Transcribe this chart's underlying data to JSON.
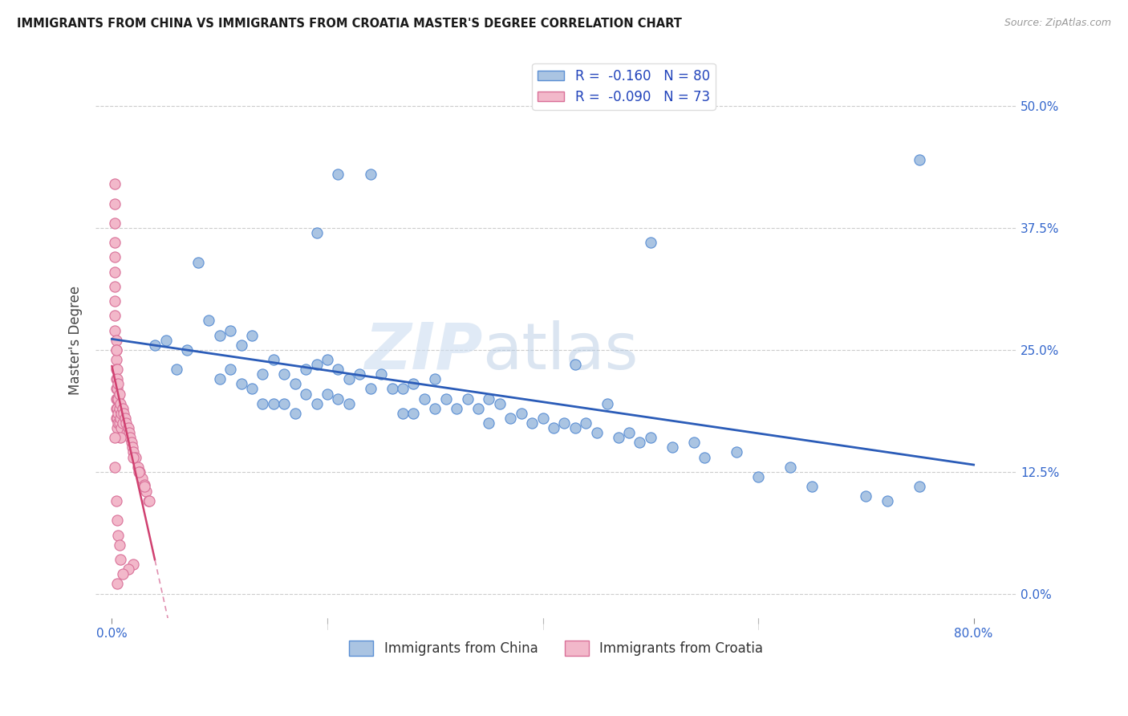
{
  "title": "IMMIGRANTS FROM CHINA VS IMMIGRANTS FROM CROATIA MASTER'S DEGREE CORRELATION CHART",
  "source": "Source: ZipAtlas.com",
  "xlabel_ticks": [
    "0.0%",
    "",
    "",
    "",
    "80.0%"
  ],
  "xlabel_tick_vals": [
    0.0,
    0.2,
    0.4,
    0.6,
    0.8
  ],
  "ylabel_ticks": [
    "0.0%",
    "12.5%",
    "25.0%",
    "37.5%",
    "50.0%"
  ],
  "ylabel_tick_vals": [
    0.0,
    0.125,
    0.25,
    0.375,
    0.5
  ],
  "ylabel": "Master's Degree",
  "xlim": [
    -0.015,
    0.84
  ],
  "ylim": [
    -0.025,
    0.545
  ],
  "china_color": "#aac4e2",
  "china_edge_color": "#5b8fd4",
  "croatia_color": "#f2b8ca",
  "croatia_edge_color": "#d97098",
  "trend_china_color": "#2b5cb8",
  "trend_croatia_solid_color": "#d04070",
  "trend_croatia_dash_color": "#e090b0",
  "R_china": -0.16,
  "N_china": 80,
  "R_croatia": -0.09,
  "N_croatia": 73,
  "china_x": [
    0.04,
    0.05,
    0.06,
    0.07,
    0.08,
    0.09,
    0.1,
    0.1,
    0.11,
    0.11,
    0.12,
    0.12,
    0.13,
    0.13,
    0.14,
    0.14,
    0.15,
    0.15,
    0.16,
    0.16,
    0.17,
    0.17,
    0.18,
    0.18,
    0.19,
    0.19,
    0.2,
    0.2,
    0.21,
    0.21,
    0.22,
    0.22,
    0.23,
    0.24,
    0.25,
    0.26,
    0.27,
    0.27,
    0.28,
    0.28,
    0.29,
    0.3,
    0.3,
    0.31,
    0.32,
    0.33,
    0.34,
    0.35,
    0.35,
    0.36,
    0.37,
    0.38,
    0.39,
    0.4,
    0.41,
    0.42,
    0.43,
    0.44,
    0.45,
    0.46,
    0.47,
    0.48,
    0.49,
    0.5,
    0.52,
    0.54,
    0.55,
    0.58,
    0.6,
    0.63,
    0.65,
    0.7,
    0.72,
    0.75,
    0.21,
    0.24,
    0.19,
    0.43,
    0.5,
    0.75
  ],
  "china_y": [
    0.255,
    0.26,
    0.23,
    0.25,
    0.34,
    0.28,
    0.265,
    0.22,
    0.27,
    0.23,
    0.255,
    0.215,
    0.265,
    0.21,
    0.225,
    0.195,
    0.24,
    0.195,
    0.225,
    0.195,
    0.215,
    0.185,
    0.23,
    0.205,
    0.235,
    0.195,
    0.24,
    0.205,
    0.23,
    0.2,
    0.22,
    0.195,
    0.225,
    0.21,
    0.225,
    0.21,
    0.21,
    0.185,
    0.215,
    0.185,
    0.2,
    0.22,
    0.19,
    0.2,
    0.19,
    0.2,
    0.19,
    0.2,
    0.175,
    0.195,
    0.18,
    0.185,
    0.175,
    0.18,
    0.17,
    0.175,
    0.17,
    0.175,
    0.165,
    0.195,
    0.16,
    0.165,
    0.155,
    0.16,
    0.15,
    0.155,
    0.14,
    0.145,
    0.12,
    0.13,
    0.11,
    0.1,
    0.095,
    0.11,
    0.43,
    0.43,
    0.37,
    0.235,
    0.36,
    0.445
  ],
  "croatia_x": [
    0.003,
    0.003,
    0.003,
    0.003,
    0.003,
    0.003,
    0.003,
    0.003,
    0.003,
    0.003,
    0.004,
    0.004,
    0.004,
    0.004,
    0.004,
    0.004,
    0.004,
    0.004,
    0.004,
    0.005,
    0.005,
    0.005,
    0.005,
    0.005,
    0.005,
    0.005,
    0.006,
    0.006,
    0.006,
    0.006,
    0.007,
    0.007,
    0.007,
    0.008,
    0.008,
    0.009,
    0.009,
    0.01,
    0.01,
    0.011,
    0.012,
    0.013,
    0.014,
    0.015,
    0.016,
    0.017,
    0.018,
    0.019,
    0.02,
    0.022,
    0.024,
    0.026,
    0.028,
    0.03,
    0.032,
    0.034,
    0.02,
    0.025,
    0.03,
    0.035,
    0.008,
    0.004,
    0.003,
    0.003,
    0.004,
    0.005,
    0.006,
    0.007,
    0.008,
    0.02,
    0.015,
    0.01,
    0.005
  ],
  "croatia_y": [
    0.42,
    0.4,
    0.38,
    0.36,
    0.345,
    0.33,
    0.315,
    0.3,
    0.285,
    0.27,
    0.26,
    0.25,
    0.24,
    0.23,
    0.22,
    0.21,
    0.2,
    0.19,
    0.18,
    0.23,
    0.22,
    0.21,
    0.2,
    0.19,
    0.18,
    0.17,
    0.215,
    0.2,
    0.185,
    0.175,
    0.205,
    0.19,
    0.175,
    0.195,
    0.18,
    0.185,
    0.17,
    0.19,
    0.175,
    0.185,
    0.18,
    0.175,
    0.165,
    0.17,
    0.165,
    0.16,
    0.155,
    0.15,
    0.145,
    0.14,
    0.13,
    0.125,
    0.118,
    0.112,
    0.105,
    0.095,
    0.14,
    0.125,
    0.11,
    0.095,
    0.16,
    0.25,
    0.16,
    0.13,
    0.095,
    0.075,
    0.06,
    0.05,
    0.035,
    0.03,
    0.025,
    0.02,
    0.01
  ],
  "background_color": "#ffffff",
  "grid_color": "#cccccc",
  "watermark_zip": "ZIP",
  "watermark_atlas": "atlas",
  "marker_size": 90,
  "trend_china_x_start": 0.0,
  "trend_china_x_end": 0.8,
  "trend_croatia_solid_x_start": 0.0,
  "trend_croatia_solid_x_end": 0.04,
  "trend_croatia_dash_x_start": 0.04,
  "trend_croatia_dash_x_end": 0.8
}
